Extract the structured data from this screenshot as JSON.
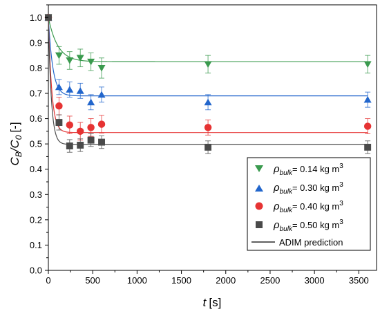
{
  "chart_data": {
    "type": "scatter",
    "xlabel": "t [s]",
    "xlabel_var": "t",
    "xlabel_unit": "[s]",
    "ylabel": "C_B/C_0 [-]",
    "ylabel_var": "C",
    "ylabel_sub1": "B",
    "ylabel_mid": "/C",
    "ylabel_sub2": "0",
    "ylabel_unit": "[-]",
    "xlim": [
      0,
      3700
    ],
    "ylim": [
      0,
      1.05
    ],
    "x_ticks": [
      0,
      500,
      1000,
      1500,
      2000,
      2500,
      3000,
      3500
    ],
    "x_tick_labels": [
      "0",
      "500",
      "1000",
      "1500",
      "2000",
      "2500",
      "3000",
      "3500"
    ],
    "y_ticks": [
      0.0,
      0.1,
      0.2,
      0.3,
      0.4,
      0.5,
      0.6,
      0.7,
      0.8,
      0.9,
      1.0
    ],
    "y_tick_labels": [
      "0.0",
      "0.1",
      "0.2",
      "0.3",
      "0.4",
      "0.5",
      "0.6",
      "0.7",
      "0.8",
      "0.9",
      "1.0"
    ],
    "grid": false,
    "legend_position": "bottom-right",
    "series": [
      {
        "name": "ρbulk= 0.14 kg m3",
        "legend_rho": "ρ",
        "legend_sub": "bulk",
        "legend_rest": "= 0.14 kg m",
        "legend_sup": "3",
        "marker": "triangle-down",
        "color": "#3a9a4e",
        "x": [
          0,
          120,
          240,
          360,
          480,
          600,
          1800,
          3600
        ],
        "y": [
          1.0,
          0.85,
          0.83,
          0.84,
          0.825,
          0.8,
          0.815,
          0.815
        ],
        "err": [
          0,
          0.035,
          0.035,
          0.035,
          0.035,
          0.04,
          0.035,
          0.035
        ],
        "fit": {
          "plateau": 0.825,
          "k": 0.0095
        }
      },
      {
        "name": "ρbulk= 0.30 kg m3",
        "legend_rho": "ρ",
        "legend_sub": "bulk",
        "legend_rest": "= 0.30 kg m",
        "legend_sup": "3",
        "marker": "triangle-up",
        "color": "#2266cc",
        "x": [
          0,
          120,
          240,
          360,
          480,
          600,
          1800,
          3600
        ],
        "y": [
          1.0,
          0.725,
          0.715,
          0.71,
          0.665,
          0.695,
          0.665,
          0.675
        ],
        "err": [
          0,
          0.03,
          0.03,
          0.03,
          0.03,
          0.03,
          0.03,
          0.03
        ],
        "fit": {
          "plateau": 0.69,
          "k": 0.02
        }
      },
      {
        "name": "ρbulk= 0.40 kg m3",
        "legend_rho": "ρ",
        "legend_sub": "bulk",
        "legend_rest": "= 0.40 kg m",
        "legend_sup": "3",
        "marker": "circle",
        "color": "#e63333",
        "x": [
          0,
          120,
          240,
          360,
          480,
          600,
          1800,
          3600
        ],
        "y": [
          1.0,
          0.65,
          0.575,
          0.55,
          0.565,
          0.578,
          0.565,
          0.57
        ],
        "err": [
          0,
          0.035,
          0.035,
          0.035,
          0.035,
          0.035,
          0.03,
          0.03
        ],
        "fit": {
          "plateau": 0.545,
          "k": 0.026
        }
      },
      {
        "name": "ρbulk= 0.50 kg m3",
        "legend_rho": "ρ",
        "legend_sub": "bulk",
        "legend_rest": "= 0.50 kg m",
        "legend_sup": "3",
        "marker": "square",
        "color": "#4a4a4a",
        "x": [
          0,
          120,
          240,
          360,
          480,
          600,
          1800,
          3600
        ],
        "y": [
          1.0,
          0.585,
          0.492,
          0.495,
          0.515,
          0.507,
          0.487,
          0.487
        ],
        "err": [
          0,
          0.03,
          0.025,
          0.025,
          0.025,
          0.025,
          0.025,
          0.025
        ],
        "fit": {
          "plateau": 0.498,
          "k": 0.03
        }
      }
    ],
    "prediction_line": {
      "name": "ADIM prediction",
      "color": "#000000"
    }
  }
}
